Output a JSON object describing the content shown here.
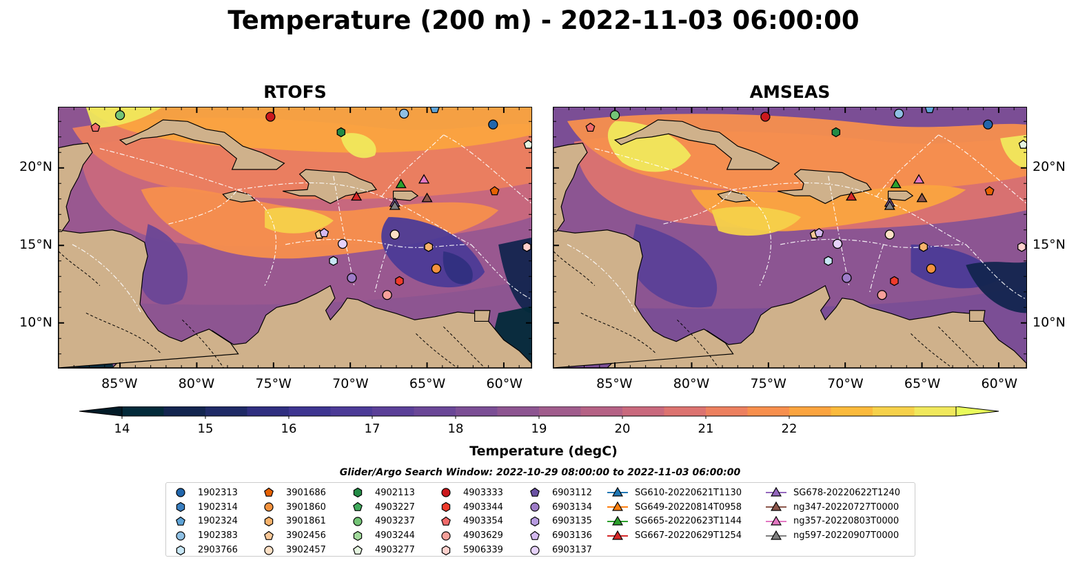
{
  "title": "Temperature (200 m) - 2022-11-03 06:00:00",
  "panels": [
    {
      "title": "RTOFS",
      "variant": "rtofs"
    },
    {
      "title": "AMSEAS",
      "variant": "amseas"
    }
  ],
  "lon_ticks": [
    "85°W",
    "80°W",
    "75°W",
    "70°W",
    "65°W",
    "60°W"
  ],
  "lon_values": [
    -85,
    -80,
    -75,
    -70,
    -65,
    -60
  ],
  "lat_ticks": [
    "20°N",
    "15°N",
    "10°N"
  ],
  "lat_values": [
    20,
    15,
    10
  ],
  "extent": {
    "lon_min": -89,
    "lon_max": -58.2,
    "lat_min": 7.1,
    "lat_max": 23.9
  },
  "colorbar": {
    "label": "Temperature (degC)",
    "ticks": [
      "14",
      "15",
      "16",
      "17",
      "18",
      "19",
      "20",
      "21",
      "22"
    ],
    "min": 14,
    "max": 22,
    "step": 0.5,
    "colors": [
      "#032a3a",
      "#13254f",
      "#1f2a66",
      "#302f80",
      "#3e3590",
      "#4c3b97",
      "#5b4098",
      "#6a4797",
      "#7b4e95",
      "#8d5591",
      "#a05c8c",
      "#b56285",
      "#c9697d",
      "#dc7370",
      "#ec805f",
      "#f78f4d",
      "#fba43f",
      "#fbba3c",
      "#f6d14a",
      "#f0e85c"
    ],
    "under_color": "#021b27",
    "over_color": "#e9fb5b"
  },
  "search_window": "Glider/Argo Search Window: 2022-10-29 08:00:00 to 2022-11-03 06:00:00",
  "colors": {
    "land": "#cfb18b",
    "water": "#98b6e0",
    "eez": "#ffffff"
  },
  "legend": {
    "argo": [
      {
        "label": "1902313",
        "marker": "circle",
        "color": "#2166ac",
        "lon": -60.7,
        "lat": 22.8
      },
      {
        "label": "1902314",
        "marker": "hexagon",
        "color": "#3a7fc0"
      },
      {
        "label": "1902324",
        "marker": "pentagon",
        "color": "#5ea3d6",
        "lon": -64.5,
        "lat": 23.8
      },
      {
        "label": "1902383",
        "marker": "circle",
        "color": "#8fc0e4",
        "lon": -66.5,
        "lat": 23.5
      },
      {
        "label": "2903766",
        "marker": "hexagon",
        "color": "#c7e6f5",
        "lon": -71.1,
        "lat": 14.0
      },
      {
        "label": "3901686",
        "marker": "pentagon",
        "color": "#e66101",
        "lon": -60.6,
        "lat": 18.5
      },
      {
        "label": "3901860",
        "marker": "circle",
        "color": "#f4923e",
        "lon": -64.4,
        "lat": 13.5
      },
      {
        "label": "3901861",
        "marker": "hexagon",
        "color": "#f7b26b",
        "lon": -64.9,
        "lat": 14.9
      },
      {
        "label": "3902456",
        "marker": "pentagon",
        "color": "#fac898",
        "lon": -72.0,
        "lat": 15.7
      },
      {
        "label": "3902457",
        "marker": "circle",
        "color": "#fde0c5",
        "lon": -67.1,
        "lat": 15.7
      },
      {
        "label": "4902113",
        "marker": "hexagon",
        "color": "#238b45",
        "lon": -70.6,
        "lat": 22.3
      },
      {
        "label": "4903227",
        "marker": "pentagon",
        "color": "#41ab5d"
      },
      {
        "label": "4903237",
        "marker": "circle",
        "color": "#74c476",
        "lon": -85.0,
        "lat": 23.4
      },
      {
        "label": "4903244",
        "marker": "hexagon",
        "color": "#a1d99b"
      },
      {
        "label": "4903277",
        "marker": "pentagon",
        "color": "#e5f5e0",
        "lon": -58.4,
        "lat": 21.5
      },
      {
        "label": "4903333",
        "marker": "circle",
        "color": "#cb181d",
        "lon": -75.2,
        "lat": 23.3
      },
      {
        "label": "4903344",
        "marker": "hexagon",
        "color": "#ef3b2c",
        "lon": -66.8,
        "lat": 12.7
      },
      {
        "label": "4903354",
        "marker": "pentagon",
        "color": "#f16a6a",
        "lon": -86.6,
        "lat": 22.6
      },
      {
        "label": "4903629",
        "marker": "circle",
        "color": "#f7a09a",
        "lon": -67.6,
        "lat": 11.8
      },
      {
        "label": "5906339",
        "marker": "hexagon",
        "color": "#fdd0cc",
        "lon": -58.5,
        "lat": 14.9
      },
      {
        "label": "6903112",
        "marker": "pentagon",
        "color": "#6a51a3"
      },
      {
        "label": "6903134",
        "marker": "circle",
        "color": "#9e7cc8",
        "lon": -69.9,
        "lat": 12.9
      },
      {
        "label": "6903135",
        "marker": "hexagon",
        "color": "#b79be0"
      },
      {
        "label": "6903136",
        "marker": "pentagon",
        "color": "#d4b9f0",
        "lon": -71.7,
        "lat": 15.8
      },
      {
        "label": "6903137",
        "marker": "circle",
        "color": "#e6d2fa",
        "lon": -70.5,
        "lat": 15.1
      }
    ],
    "gliders": [
      {
        "label": "SG610-20220621T1130",
        "color": "#1f77b4"
      },
      {
        "label": "SG649-20220814T0958",
        "color": "#ff7f0e"
      },
      {
        "label": "SG665-20220623T1144",
        "color": "#2ca02c",
        "lon": -66.7,
        "lat": 18.9
      },
      {
        "label": "SG667-20220629T1254",
        "color": "#d62728",
        "lon": -69.6,
        "lat": 18.1
      },
      {
        "label": "SG678-20220622T1240",
        "color": "#9467bd",
        "lon": -67.1,
        "lat": 17.7
      },
      {
        "label": "ng347-20220727T0000",
        "color": "#8c564b",
        "lon": -65.0,
        "lat": 18.0
      },
      {
        "label": "ng357-20220803T0000",
        "color": "#e377c2",
        "lon": -65.2,
        "lat": 19.2
      },
      {
        "label": "ng597-20220907T0000",
        "color": "#7f7f7f",
        "lon": -67.1,
        "lat": 17.5
      }
    ]
  }
}
